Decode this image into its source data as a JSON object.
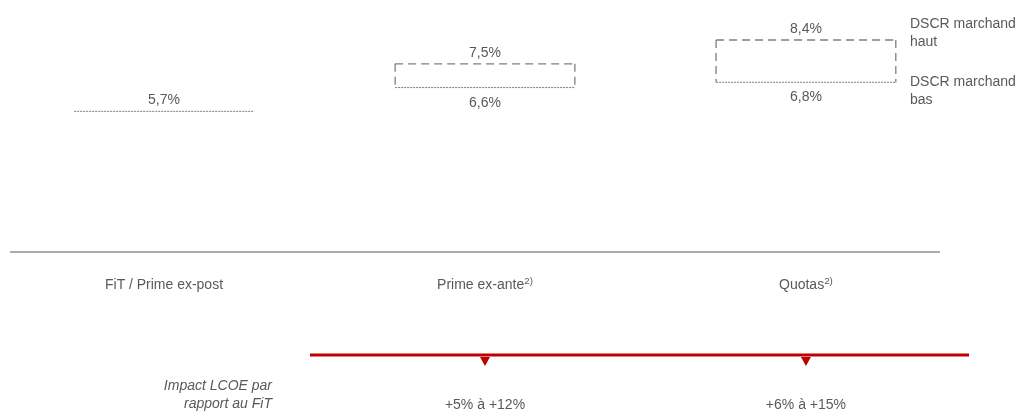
{
  "chart_data": {
    "type": "other",
    "categories": [
      "FiT / Prime ex-post",
      "Prime ex-ante$^{2)}$",
      "Quotas$^{2)}$"
    ],
    "series": [
      {
        "name": "DSCR marchand haut",
        "color": "#7f7f7f",
        "line_style": "dashed",
        "values": [
          null,
          7.5,
          8.4
        ],
        "value_labels": [
          null,
          "7,5%",
          "8,4%"
        ]
      },
      {
        "name": "DSCR marchand bas",
        "color": "#7f7f7f",
        "line_style": "dotted",
        "values": [
          5.7,
          6.6,
          6.8
        ],
        "value_labels": [
          "5,7%",
          "6,6%",
          "6,8%"
        ]
      }
    ],
    "annotations": [
      "Impact LCOE par rapport au FiT",
      "+5% à +12%",
      "+6% à +15%"
    ]
  }
}
